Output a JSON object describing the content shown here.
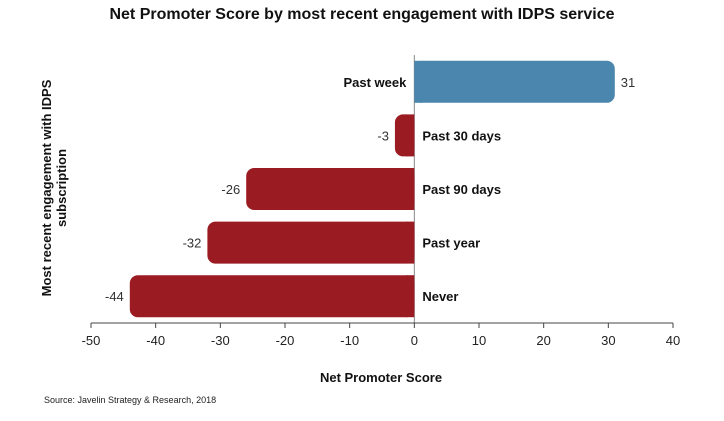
{
  "chart_data": {
    "type": "bar",
    "orientation": "horizontal",
    "title": "Net Promoter Score by most recent engagement with IDPS service",
    "xlabel": "Net Promoter Score",
    "ylabel": "Most recent engagement with IDPS subscription",
    "categories": [
      "Past week",
      "Past 30 days",
      "Past 90 days",
      "Past year",
      "Never"
    ],
    "values": [
      31,
      -3,
      -26,
      -32,
      -44
    ],
    "value_labels": [
      "31",
      "-3",
      "-26",
      "-32",
      "-44"
    ],
    "xlim": [
      -50,
      40
    ],
    "xticks": [
      -50,
      -40,
      -30,
      -20,
      -10,
      0,
      10,
      20,
      30,
      40
    ],
    "grid": false,
    "legend": "none",
    "colors": {
      "positive": "#4a86ae",
      "negative": "#9b1b22"
    }
  },
  "source": "Source: Javelin Strategy & Research, 2018"
}
